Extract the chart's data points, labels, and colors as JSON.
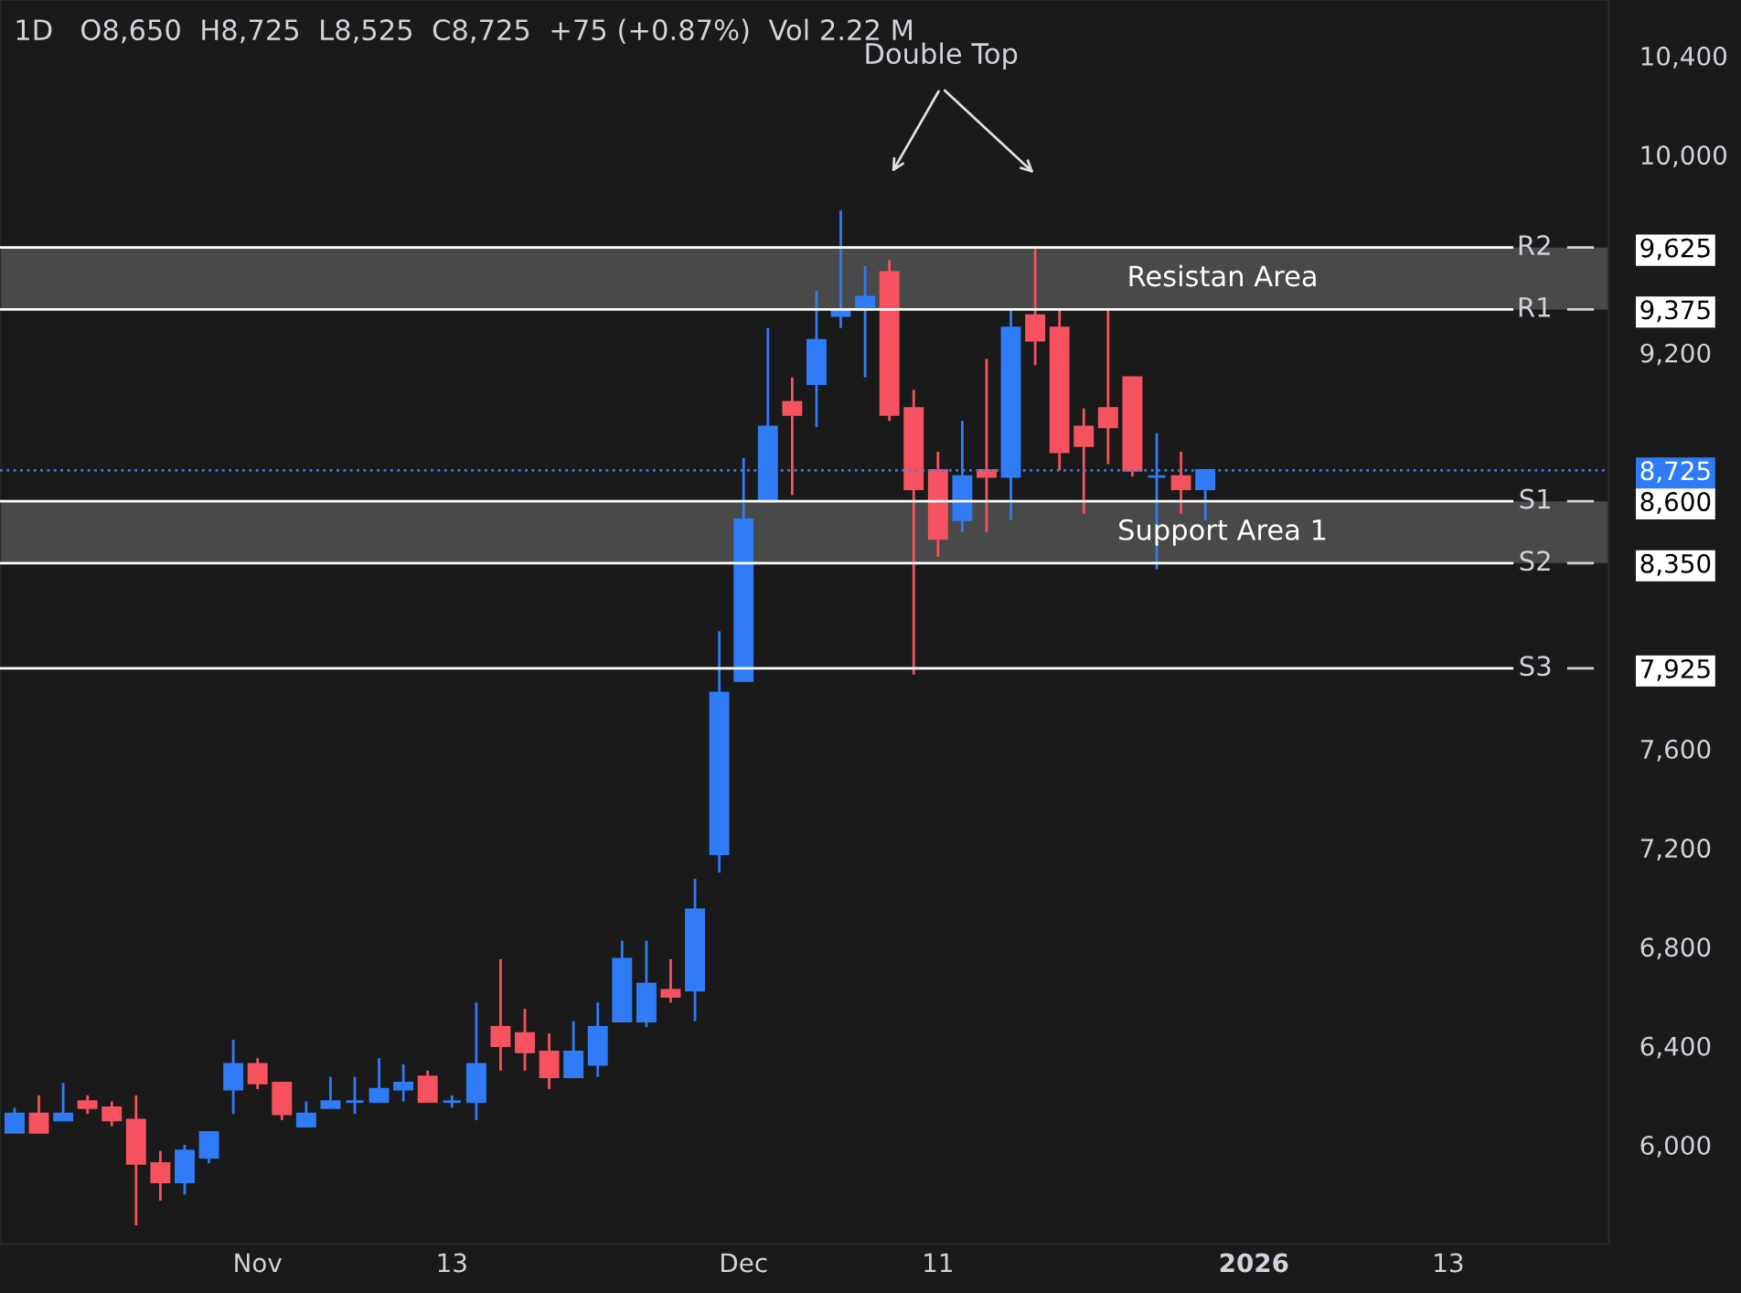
{
  "chart_data": {
    "type": "candlestick",
    "title": "1D   O8,650  H8,725  L8,525  C8,725  +75 (+0.87%)  Vol 2.22 M",
    "categories": [
      null,
      null,
      null,
      null,
      null,
      null,
      null,
      null,
      null,
      null,
      "Nov",
      null,
      null,
      null,
      null,
      null,
      null,
      null,
      "13",
      null,
      null,
      null,
      null,
      null,
      null,
      null,
      null,
      null,
      null,
      null,
      "Dec",
      null,
      null,
      null,
      null,
      null,
      null,
      null,
      "11",
      null,
      null,
      null,
      null,
      null,
      null,
      null,
      null,
      null,
      null,
      null,
      null,
      "2026",
      null,
      null,
      null,
      null,
      null,
      null,
      null,
      "13",
      null,
      null,
      null,
      null,
      null,
      null
    ],
    "ohlc": [
      [
        6050,
        6150,
        6050,
        6125
      ],
      [
        6125,
        6200,
        6050,
        6050
      ],
      [
        6100,
        6250,
        6100,
        6125
      ],
      [
        6175,
        6200,
        6125,
        6150
      ],
      [
        6150,
        6175,
        6075,
        6100
      ],
      [
        6100,
        6200,
        5675,
        5925
      ],
      [
        5925,
        5975,
        5775,
        5850
      ],
      [
        5850,
        6000,
        5800,
        5975
      ],
      [
        5950,
        6050,
        5925,
        6050
      ],
      [
        6225,
        6425,
        6125,
        6325
      ],
      [
        6325,
        6350,
        6225,
        6250
      ],
      [
        6250,
        6250,
        6100,
        6125
      ],
      [
        6075,
        6175,
        6075,
        6125
      ],
      [
        6150,
        6275,
        6150,
        6175
      ],
      [
        6175,
        6275,
        6125,
        6175
      ],
      [
        6175,
        6350,
        6175,
        6225
      ],
      [
        6225,
        6325,
        6175,
        6250
      ],
      [
        6275,
        6300,
        6175,
        6175
      ],
      [
        6175,
        6200,
        6150,
        6175
      ],
      [
        6175,
        6575,
        6100,
        6325
      ],
      [
        6475,
        6750,
        6300,
        6400
      ],
      [
        6450,
        6550,
        6300,
        6375
      ],
      [
        6375,
        6450,
        6225,
        6275
      ],
      [
        6275,
        6500,
        6275,
        6375
      ],
      [
        6325,
        6575,
        6275,
        6475
      ],
      [
        6500,
        6825,
        6500,
        6750
      ],
      [
        6500,
        6825,
        6475,
        6650
      ],
      [
        6625,
        6750,
        6575,
        6600
      ],
      [
        6625,
        7075,
        6500,
        6950
      ],
      [
        7175,
        8075,
        7100,
        7825
      ],
      [
        7875,
        8775,
        7875,
        8525
      ],
      [
        8600,
        9300,
        8600,
        8900
      ],
      [
        9000,
        9100,
        8625,
        8950
      ],
      [
        9075,
        9450,
        8900,
        9250
      ],
      [
        9350,
        9775,
        9300,
        9375
      ],
      [
        9375,
        9550,
        9100,
        9425
      ],
      [
        9525,
        9575,
        8925,
        8950
      ],
      [
        8975,
        9050,
        7900,
        8650
      ],
      [
        8725,
        8800,
        8375,
        8450
      ],
      [
        8525,
        8925,
        8475,
        8700
      ],
      [
        8725,
        9175,
        8475,
        8700
      ],
      [
        8700,
        9375,
        8525,
        9300
      ],
      [
        9350,
        9625,
        9150,
        9250
      ],
      [
        9300,
        9375,
        8725,
        8800
      ],
      [
        8900,
        8975,
        8550,
        8825
      ],
      [
        8975,
        9375,
        8750,
        8900
      ],
      [
        9100,
        9100,
        8700,
        8725
      ],
      [
        8700,
        8875,
        8325,
        8700
      ],
      [
        8700,
        8800,
        8550,
        8650
      ],
      [
        8650,
        8725,
        8525,
        8725
      ],
      null,
      null,
      null,
      null,
      null,
      null,
      null,
      null,
      null,
      null,
      null,
      null,
      null,
      null,
      null,
      null
    ],
    "colors": [
      "#2f7cf6",
      "#f7525f",
      "#2f7cf6",
      "#f7525f",
      "#f7525f",
      "#f7525f",
      "#f7525f",
      "#2f7cf6",
      "#2f7cf6",
      "#2f7cf6",
      "#f7525f",
      "#f7525f",
      "#2f7cf6",
      "#2f7cf6",
      "#2f7cf6",
      "#2f7cf6",
      "#2f7cf6",
      "#f7525f",
      "#2f7cf6",
      "#2f7cf6",
      "#f7525f",
      "#f7525f",
      "#f7525f",
      "#2f7cf6",
      "#2f7cf6",
      "#2f7cf6",
      "#2f7cf6",
      "#f7525f",
      "#2f7cf6",
      "#2f7cf6",
      "#2f7cf6",
      "#2f7cf6",
      "#f7525f",
      "#2f7cf6",
      "#2f7cf6",
      "#2f7cf6",
      "#f7525f",
      "#f7525f",
      "#f7525f",
      "#2f7cf6",
      "#f7525f",
      "#2f7cf6",
      "#f7525f",
      "#f7525f",
      "#f7525f",
      "#f7525f",
      "#f7525f",
      "#2f7cf6",
      "#f7525f",
      "#2f7cf6",
      null,
      null,
      null,
      null,
      null,
      null,
      null,
      null,
      null,
      null,
      null,
      null,
      null,
      null,
      null,
      null
    ],
    "ylim": [
      5600,
      10625
    ],
    "yticks": [
      {
        "value": 6000,
        "label": "6,000"
      },
      {
        "value": 6400,
        "label": "6,400"
      },
      {
        "value": 6800,
        "label": "6,800"
      },
      {
        "value": 7200,
        "label": "7,200"
      },
      {
        "value": 7600,
        "label": "7,600"
      },
      {
        "value": 7925,
        "label": "7,925"
      },
      {
        "value": 8350,
        "label": "8,350"
      },
      {
        "value": 8600,
        "label": "8,600"
      },
      {
        "value": 8725,
        "label": "8,725"
      },
      {
        "value": 9200,
        "label": "9,200"
      },
      {
        "value": 9375,
        "label": "9,375"
      },
      {
        "value": 9625,
        "label": "9,625"
      },
      {
        "value": 10000,
        "label": "10,000"
      },
      {
        "value": 10400,
        "label": "10,400"
      }
    ],
    "ref_lines": [
      {
        "axis": "y",
        "value": 9625,
        "label": "R2",
        "color": "#ffffff"
      },
      {
        "axis": "y",
        "value": 9375,
        "label": "R1",
        "color": "#ffffff"
      },
      {
        "axis": "y",
        "value": 8600,
        "label": "S1",
        "color": "#ffffff"
      },
      {
        "axis": "y",
        "value": 8350,
        "label": "S2",
        "color": "#ffffff"
      },
      {
        "axis": "y",
        "value": 7925,
        "label": "S3",
        "color": "#ffffff"
      },
      {
        "axis": "y",
        "value": 8725,
        "label": null,
        "color": "#2f7cf6",
        "line_style": "dotted"
      }
    ],
    "bands": [
      {
        "axis": "y",
        "from": 9375,
        "to": 9625,
        "label": "Resistan Area",
        "color": "#5a5a5a"
      },
      {
        "axis": "y",
        "from": 8350,
        "to": 8600,
        "label": "Support Area 1",
        "color": "#5a5a5a"
      }
    ],
    "annotations": [
      "Double Top"
    ],
    "grid": false
  }
}
